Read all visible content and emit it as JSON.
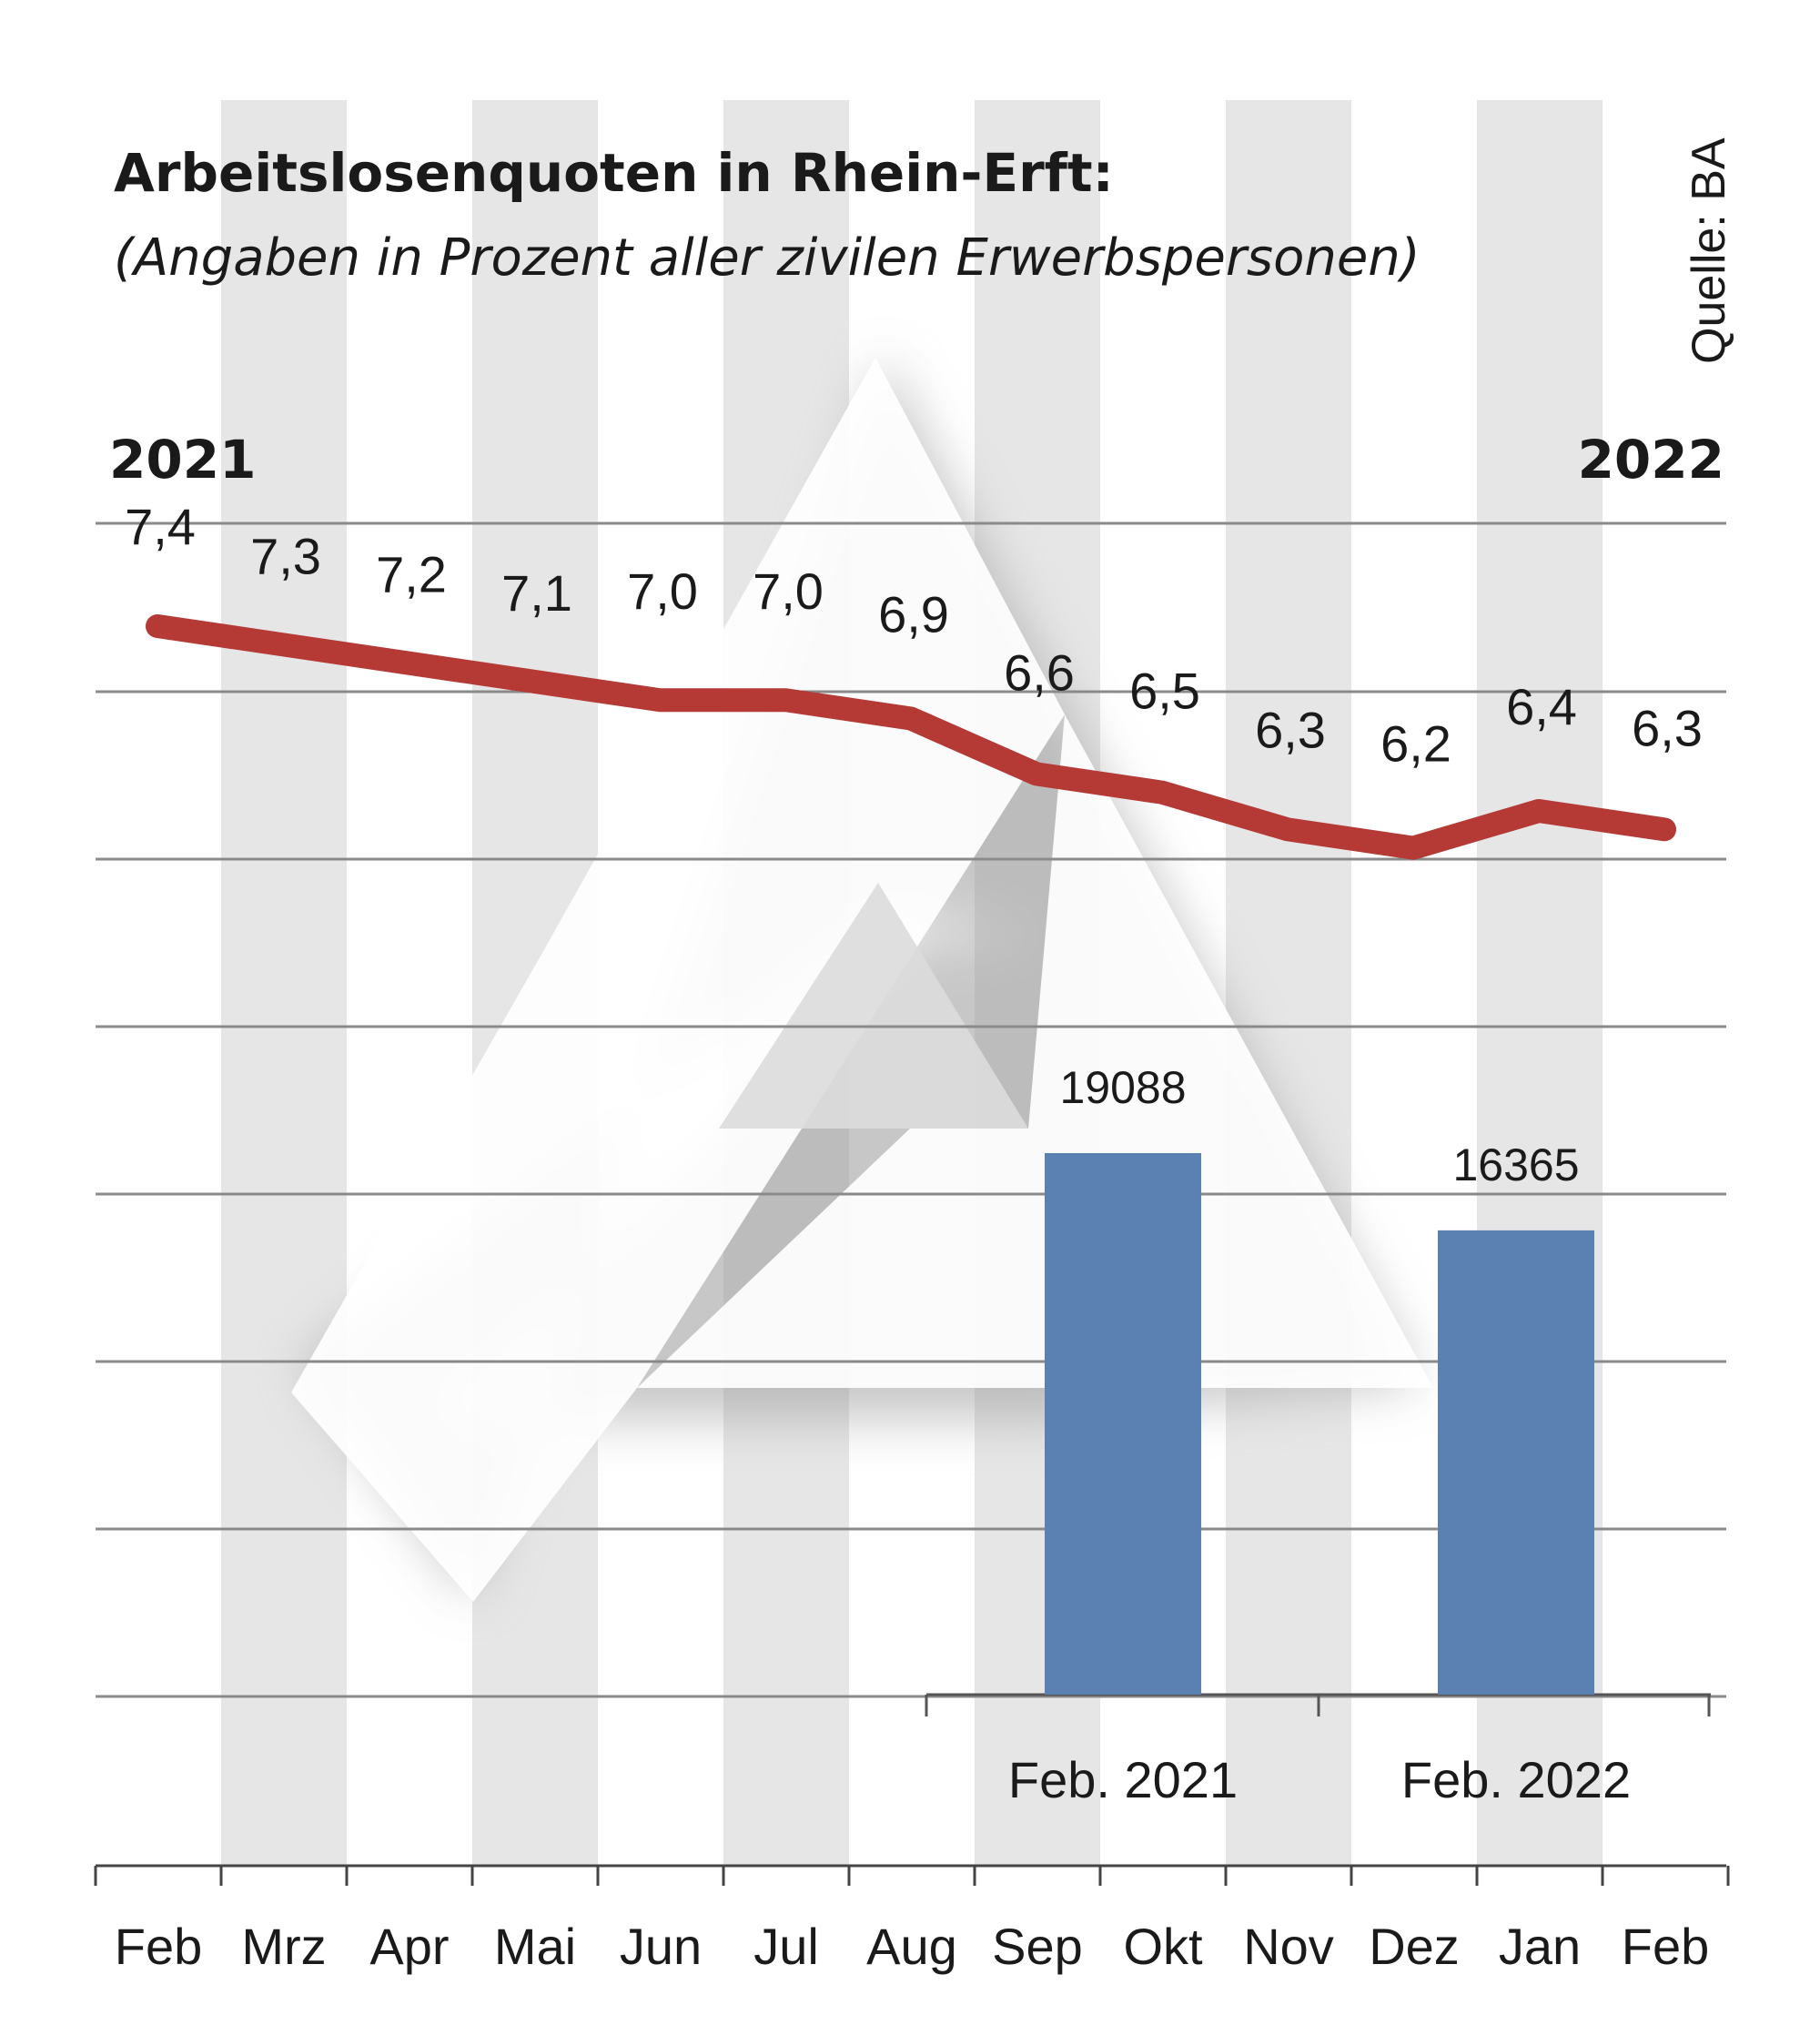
{
  "colors": {
    "line": "#b53a36",
    "bar": "#5b80b2",
    "stripe": "#e6e6e6",
    "grid": "#8a8a8a"
  },
  "title": "Arbeitslosenquoten in Rhein-Erft:",
  "subtitle": "(Angaben in Prozent aller zivilen Erwerbspersonen)",
  "source": "Quelle: BA",
  "year_start": "2021",
  "year_end": "2022",
  "chart_data": [
    {
      "type": "line",
      "categories": [
        "Feb",
        "Mrz",
        "Apr",
        "Mai",
        "Jun",
        "Jul",
        "Aug",
        "Sep",
        "Okt",
        "Nov",
        "Dez",
        "Jan",
        "Feb"
      ],
      "values": [
        7.4,
        7.3,
        7.2,
        7.1,
        7.0,
        7.0,
        6.9,
        6.6,
        6.5,
        6.3,
        6.2,
        6.4,
        6.3
      ],
      "value_labels": [
        "7,4",
        "7,3",
        "7,2",
        "7,1",
        "7,0",
        "7,0",
        "6,9",
        "6,6",
        "6,5",
        "6,3",
        "6,2",
        "6,4",
        "6,3"
      ]
    },
    {
      "type": "bar",
      "categories": [
        "Feb. 2021",
        "Feb. 2022"
      ],
      "values": [
        19088,
        16365
      ],
      "value_labels": [
        "19088",
        "16365"
      ]
    }
  ]
}
